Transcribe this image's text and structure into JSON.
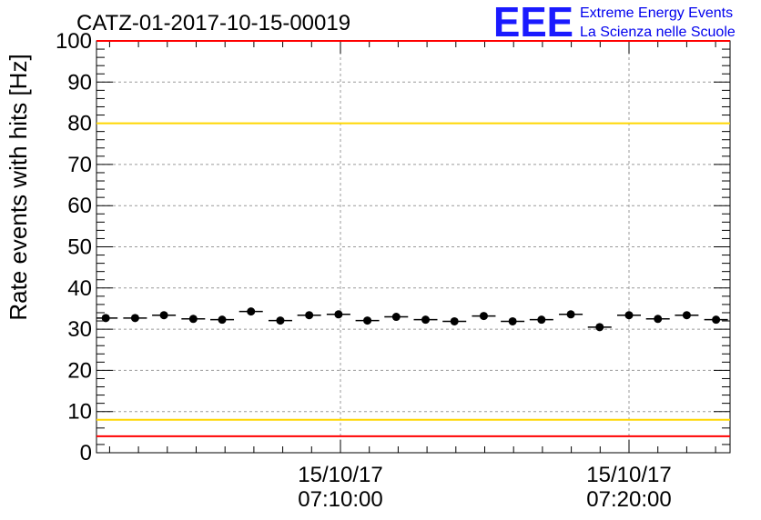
{
  "chart_data": {
    "type": "scatter",
    "title": "CATZ-01-2017-10-15-00019",
    "ylabel": "Rate events with hits [Hz]",
    "xlabel": "",
    "ylim": [
      0,
      100
    ],
    "yticks": [
      "0",
      "10",
      "20",
      "30",
      "40",
      "50",
      "60",
      "70",
      "80",
      "90",
      "100"
    ],
    "xticks": [
      {
        "date": "15/10/17",
        "time": "07:10:00"
      },
      {
        "date": "15/10/17",
        "time": "07:20:00"
      }
    ],
    "grid": true,
    "logo": {
      "mark": "EEE",
      "line1": "Extreme Energy Events",
      "line2": "La Scienza nelle Scuole"
    },
    "colors": {
      "reference_red": "#ff0000",
      "reference_yellow": "#ffd700",
      "points": "#000000",
      "logo": "#1a1aff"
    },
    "reference_lines": [
      {
        "y": 100,
        "color": "red"
      },
      {
        "y": 80,
        "color": "yellow"
      },
      {
        "y": 8,
        "color": "yellow"
      },
      {
        "y": 4,
        "color": "red"
      }
    ],
    "points": [
      {
        "time": "07:01:52",
        "y": 32.7
      },
      {
        "time": "07:02:53",
        "y": 32.7
      },
      {
        "time": "07:03:53",
        "y": 33.4
      },
      {
        "time": "07:04:54",
        "y": 32.5
      },
      {
        "time": "07:05:54",
        "y": 32.3
      },
      {
        "time": "07:06:54",
        "y": 34.3
      },
      {
        "time": "07:07:55",
        "y": 32.1
      },
      {
        "time": "07:08:55",
        "y": 33.4
      },
      {
        "time": "07:09:56",
        "y": 33.6
      },
      {
        "time": "07:10:56",
        "y": 32.1
      },
      {
        "time": "07:11:56",
        "y": 33.0
      },
      {
        "time": "07:12:57",
        "y": 32.3
      },
      {
        "time": "07:13:57",
        "y": 31.9
      },
      {
        "time": "07:14:58",
        "y": 33.2
      },
      {
        "time": "07:15:58",
        "y": 31.9
      },
      {
        "time": "07:16:58",
        "y": 32.3
      },
      {
        "time": "07:17:59",
        "y": 33.6
      },
      {
        "time": "07:18:59",
        "y": 30.5
      },
      {
        "time": "07:20:00",
        "y": 33.4
      },
      {
        "time": "07:21:00",
        "y": 32.5
      },
      {
        "time": "07:22:00",
        "y": 33.4
      },
      {
        "time": "07:23:01",
        "y": 32.3
      }
    ]
  }
}
